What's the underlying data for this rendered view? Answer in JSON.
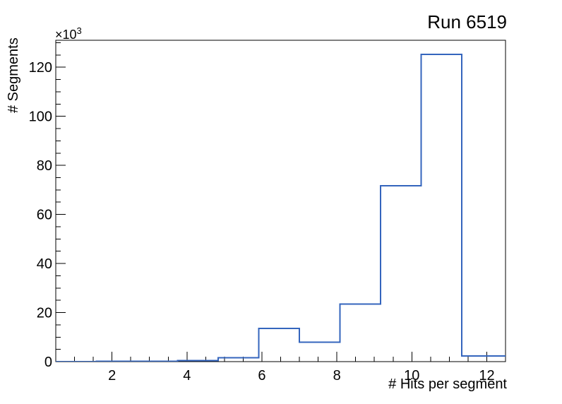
{
  "title": "Run 6519",
  "axes": {
    "x_title": "# Hits per segment",
    "y_title": "# Segments",
    "power_base": "×10",
    "power_exp": "3"
  },
  "chart_data": {
    "type": "bar",
    "style": "step-outline-histogram",
    "title": "Run 6519",
    "xlabel": "# Hits per segment",
    "ylabel": "# Segments",
    "y_axis_multiplier": "×10^3",
    "x_range": [
      0.5,
      12.5
    ],
    "y_range": [
      0,
      131
    ],
    "x_major_ticks": [
      2,
      4,
      6,
      8,
      10,
      12
    ],
    "x_minor_tick_step": 0.5,
    "y_major_ticks": [
      0,
      20,
      40,
      60,
      80,
      100,
      120
    ],
    "y_minor_tick_step": 5,
    "y_values_unit": 1000,
    "bin_edges": [
      0.5,
      1.5833,
      2.6667,
      3.75,
      4.8333,
      5.9167,
      7.0,
      8.0833,
      9.1667,
      10.25,
      11.3333,
      12.4167,
      13.5
    ],
    "bin_values_thousands": [
      0.05,
      0.1,
      0.15,
      0.4,
      1.6,
      13.6,
      7.9,
      23.4,
      71.7,
      125.2,
      2.3,
      2.3
    ],
    "line_color": "#3465bd",
    "axis_color": "#000000",
    "background": "#ffffff",
    "grid": false,
    "legend_position": "none"
  }
}
